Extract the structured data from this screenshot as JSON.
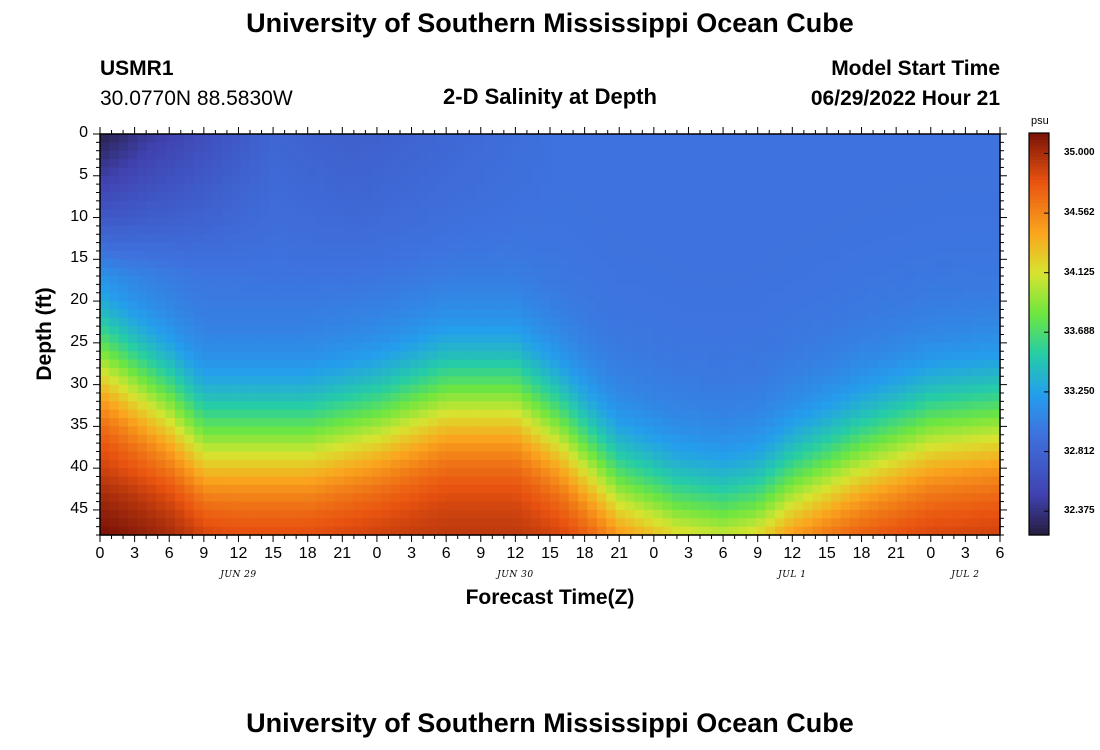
{
  "header": {
    "title": "University of Southern Mississippi Ocean Cube",
    "station_id": "USMR1",
    "coordinates": "30.0770N  88.5830W",
    "chart_title": "2-D Salinity at Depth",
    "model_start_label": "Model Start Time",
    "model_start_value": "06/29/2022 Hour 21"
  },
  "footer": {
    "title": "University of Southern Mississippi Ocean Cube"
  },
  "chart_data": {
    "type": "heatmap",
    "title": "2-D Salinity at Depth",
    "xlabel": "Forecast Time(Z)",
    "ylabel": "Depth (ft)",
    "x_tick_labels": [
      "0",
      "3",
      "6",
      "9",
      "12",
      "15",
      "18",
      "21",
      "0",
      "3",
      "6",
      "9",
      "12",
      "15",
      "18",
      "21",
      "0",
      "3",
      "6",
      "9",
      "12",
      "15",
      "18",
      "21",
      "0",
      "3",
      "6"
    ],
    "x_range_hours": [
      0,
      78
    ],
    "date_labels": [
      {
        "text": "JUN 29",
        "hour": 12
      },
      {
        "text": "JUN 30",
        "hour": 36
      },
      {
        "text": "JUL 1",
        "hour": 60
      },
      {
        "text": "JUL 2",
        "hour": 75
      }
    ],
    "y_tick_labels": [
      "0",
      "5",
      "10",
      "15",
      "20",
      "25",
      "30",
      "35",
      "40",
      "45"
    ],
    "ylim": [
      0,
      48
    ],
    "y_inverted": true,
    "colorbar": {
      "unit": "psu",
      "tick_labels": [
        "35.000",
        "34.562",
        "34.125",
        "33.688",
        "33.250",
        "32.812",
        "32.375"
      ],
      "min": 32.2,
      "max": 35.15
    },
    "interface_profile": {
      "description_hours": [
        0,
        6,
        9,
        12,
        18,
        24,
        30,
        36,
        40,
        45,
        50,
        54,
        57,
        60,
        66,
        72,
        78
      ],
      "interface_depth_ft": [
        27,
        33,
        37,
        37,
        37,
        35,
        32,
        32,
        36,
        43,
        46,
        47,
        46,
        43,
        39,
        36,
        35
      ]
    }
  }
}
